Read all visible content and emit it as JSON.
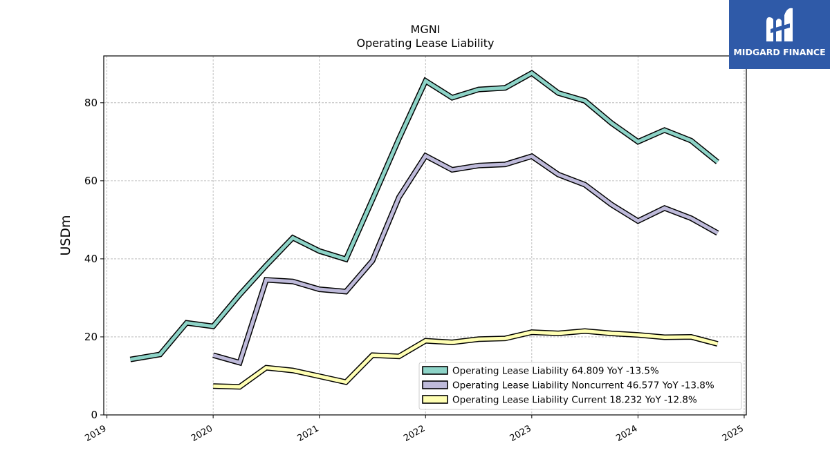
{
  "chart_data": {
    "type": "line",
    "title": "MGNI",
    "subtitle": "Operating Lease Liability",
    "ylabel": "USDm",
    "xlabel": "",
    "ylim": [
      0,
      92
    ],
    "xlim": [
      2018.97,
      2025.02
    ],
    "yticks": [
      0,
      20,
      40,
      60,
      80
    ],
    "xticks": [
      "2019",
      "2020",
      "2021",
      "2022",
      "2023",
      "2024",
      "2025"
    ],
    "grid": true,
    "legend_position": "lower-right",
    "series": [
      {
        "name": "Operating Lease Liability  64.809 YoY -13.5%",
        "color": "#8dd3c7",
        "x": [
          2019.22,
          2019.5,
          2019.75,
          2020.0,
          2020.25,
          2020.5,
          2020.75,
          2021.0,
          2021.25,
          2021.5,
          2021.75,
          2022.0,
          2022.25,
          2022.5,
          2022.75,
          2023.0,
          2023.25,
          2023.5,
          2023.75,
          2024.0,
          2024.25,
          2024.5,
          2024.75
        ],
        "y": [
          14.2,
          15.5,
          23.6,
          22.7,
          30.8,
          38.3,
          45.4,
          42.0,
          39.9,
          55.2,
          70.8,
          85.6,
          81.3,
          83.4,
          83.8,
          87.6,
          82.5,
          80.5,
          74.8,
          70.0,
          73.0,
          70.3,
          64.8
        ]
      },
      {
        "name": "Operating Lease Liability Noncurrent  46.577 YoY -13.8%",
        "color": "#bebada",
        "x": [
          2020.0,
          2020.25,
          2020.5,
          2020.75,
          2021.0,
          2021.25,
          2021.5,
          2021.75,
          2022.0,
          2022.25,
          2022.5,
          2022.75,
          2023.0,
          2023.25,
          2023.5,
          2023.75,
          2024.0,
          2024.25,
          2024.5,
          2024.75
        ],
        "y": [
          15.3,
          13.4,
          34.6,
          34.2,
          32.2,
          31.6,
          39.5,
          55.8,
          66.4,
          62.8,
          63.9,
          64.2,
          66.3,
          61.6,
          59.0,
          53.9,
          49.7,
          53.0,
          50.4,
          46.6
        ]
      },
      {
        "name": "Operating Lease Liability Current  18.232 YoY -12.8%",
        "color": "#ffffb3",
        "x": [
          2020.0,
          2020.25,
          2020.5,
          2020.75,
          2021.0,
          2021.25,
          2021.5,
          2021.75,
          2022.0,
          2022.25,
          2022.5,
          2022.75,
          2023.0,
          2023.25,
          2023.5,
          2023.75,
          2024.0,
          2024.25,
          2024.5,
          2024.75
        ],
        "y": [
          7.4,
          7.2,
          12.1,
          11.4,
          9.9,
          8.4,
          15.3,
          15.0,
          19.0,
          18.6,
          19.4,
          19.6,
          21.2,
          20.9,
          21.5,
          20.9,
          20.5,
          19.9,
          20.0,
          18.2
        ]
      }
    ]
  },
  "logo": {
    "text": "MIDGARD FINANCE",
    "background": "#2f5aa8"
  }
}
